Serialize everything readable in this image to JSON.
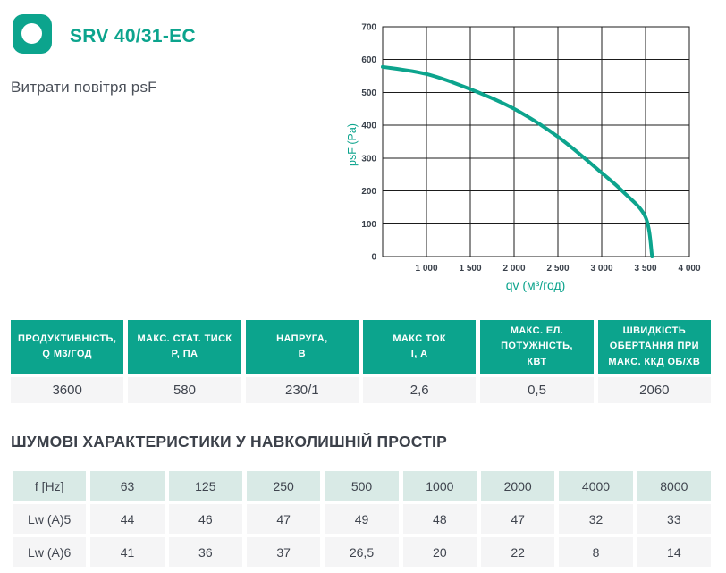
{
  "colors": {
    "accent": "#0CA48D",
    "mint_header": "#D9EAE6",
    "row_bg": "#F5F5F6",
    "text_dark": "#3F444E",
    "grid_line": "#1B1B1B"
  },
  "brand": {
    "logo_icon": "circle-in-rounded-square"
  },
  "header": {
    "title": "SRV 40/31-EC",
    "subtitle": "Витрати повітря psF"
  },
  "chart_data": {
    "type": "line",
    "title": "",
    "xlabel": "qv (м³/год)",
    "ylabel": "psF (Pa)",
    "xlim": [
      500,
      4000
    ],
    "ylim": [
      0,
      700
    ],
    "x_grid_step": 500,
    "y_grid_step": 100,
    "grid": true,
    "legend_position": "none",
    "x_tick_values": [
      1000,
      1500,
      2000,
      2500,
      3000,
      3500,
      4000
    ],
    "x_tick_labels": [
      "1 000",
      "1 500",
      "2 000",
      "2 500",
      "3 000",
      "3 500",
      "4 000"
    ],
    "y_tick_values": [
      0,
      100,
      200,
      300,
      400,
      500,
      600,
      700
    ],
    "y_tick_labels": [
      "0",
      "100",
      "200",
      "300",
      "400",
      "500",
      "600",
      "700"
    ],
    "series": [
      {
        "name": "psF curve",
        "color": "#0CA48D",
        "points": [
          [
            500,
            578
          ],
          [
            1000,
            556
          ],
          [
            1500,
            510
          ],
          [
            2000,
            450
          ],
          [
            2500,
            365
          ],
          [
            3000,
            255
          ],
          [
            3250,
            196
          ],
          [
            3500,
            120
          ],
          [
            3575,
            0
          ]
        ]
      }
    ]
  },
  "spec_table": {
    "columns": [
      "ПРОДУКТИВНІСТЬ,\nQ М3/ГОД",
      "МАКС. СТАТ. ТИСК\nР, ПА",
      "НАПРУГА,\nВ",
      "МАКС ТОК\nI, А",
      "МАКС. ЕЛ.\nПОТУЖНІСТЬ,\nКВТ",
      "ШВИДКІСТЬ\nОБЕРТАННЯ ПРИ\nМАКС. ККД ОБ/ХВ"
    ],
    "values": [
      "3600",
      "580",
      "230/1",
      "2,6",
      "0,5",
      "2060"
    ]
  },
  "noise_section": {
    "title": "ШУМОВІ ХАРАКТЕРИСТИКИ У НАВКОЛИШНІЙ ПРОСТІР"
  },
  "noise_table": {
    "header": [
      "f [Hz]",
      "63",
      "125",
      "250",
      "500",
      "1000",
      "2000",
      "4000",
      "8000"
    ],
    "rows": [
      [
        "Lw (A)5",
        "44",
        "46",
        "47",
        "49",
        "48",
        "47",
        "32",
        "33"
      ],
      [
        "Lw (A)6",
        "41",
        "36",
        "37",
        "26,5",
        "20",
        "22",
        "8",
        "14"
      ]
    ]
  }
}
